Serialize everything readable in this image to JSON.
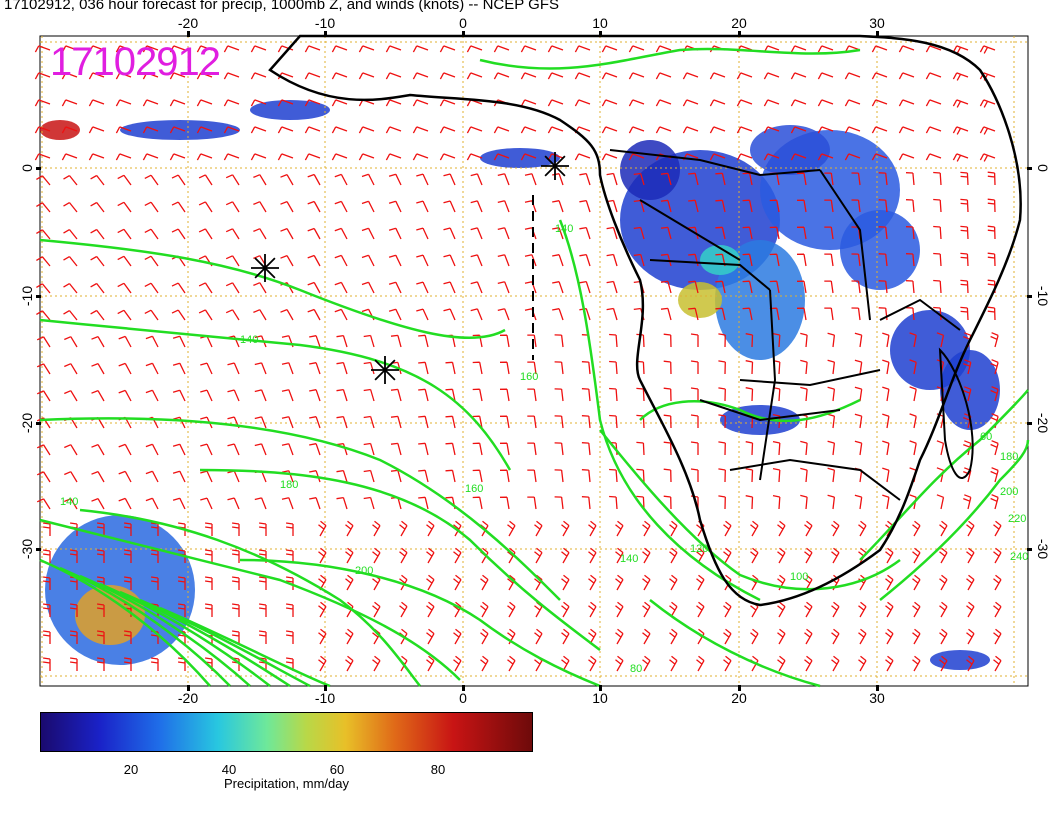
{
  "title": "17102912, 036 hour forecast for precip, 1000mb Z, and winds (knots) -- NCEP GFS",
  "stamp": "17102912",
  "axes": {
    "lon_ticks": [
      "-20",
      "-10",
      "0",
      "10",
      "20",
      "30"
    ],
    "lat_ticks": [
      "0",
      "-10",
      "-20",
      "-30"
    ]
  },
  "contours": {
    "labels": [
      "140",
      "140",
      "140",
      "160",
      "160",
      "180",
      "200",
      "200",
      "220",
      "240",
      "60",
      "100",
      "120",
      "140",
      "180",
      "80"
    ],
    "color": "#22dd22"
  },
  "colors": {
    "barbs": "#ee1111",
    "contours": "#22dd22",
    "gridlines": "#e0b030",
    "coastline": "#000000",
    "stamp": "#e01ee0"
  },
  "colorbar": {
    "ticks": [
      "20",
      "40",
      "60",
      "80"
    ],
    "label": "Precipitation, mm/day",
    "colors": [
      "#1a0a6e",
      "#1a22c8",
      "#1f6de8",
      "#28c7e0",
      "#6ee89a",
      "#b8d848",
      "#e8c028",
      "#e06a18",
      "#c81414",
      "#6e0a0a"
    ]
  },
  "markers": [
    "asterisk",
    "asterisk",
    "asterisk"
  ]
}
